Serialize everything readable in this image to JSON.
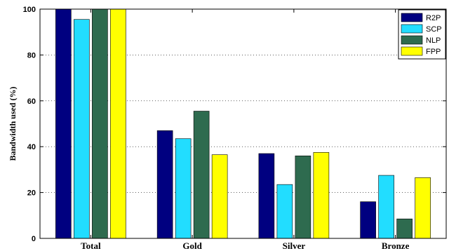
{
  "chart_data": {
    "type": "bar",
    "title": "",
    "xlabel": "",
    "ylabel": "Bandwidth used (%)",
    "ylim": [
      0,
      100
    ],
    "yticks": [
      0,
      20,
      40,
      60,
      80,
      100
    ],
    "grid": true,
    "legend_position": "top-right",
    "categories": [
      "Total",
      "Gold",
      "Silver",
      "Bronze"
    ],
    "series": [
      {
        "name": "R2P",
        "color": "#000080",
        "values": [
          100,
          47,
          37,
          16
        ]
      },
      {
        "name": "SCP",
        "color": "#22DDFF",
        "values": [
          95.5,
          43.5,
          23.5,
          27.5
        ]
      },
      {
        "name": "NLP",
        "color": "#2E6B4F",
        "values": [
          100,
          55.5,
          36,
          8.5
        ]
      },
      {
        "name": "FPP",
        "color": "#FFFF00",
        "values": [
          100,
          36.5,
          37.5,
          26.5
        ]
      }
    ]
  }
}
